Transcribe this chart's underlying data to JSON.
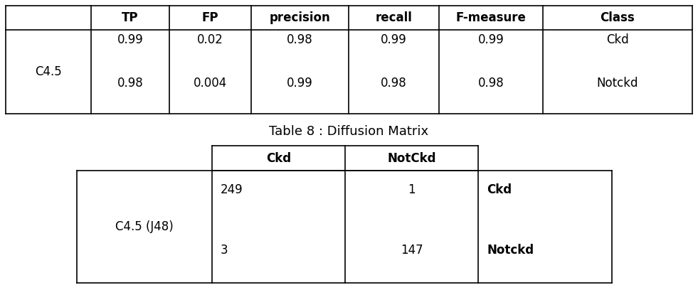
{
  "table1": {
    "headers": [
      "",
      "TP",
      "FP",
      "precision",
      "recall",
      "F-measure",
      "Class"
    ],
    "row_label": "C4.5",
    "row_data": [
      [
        "0.99",
        "0.02",
        "0.98",
        "0.99",
        "0.99",
        "Ckd"
      ],
      [
        "0.98",
        "0.004",
        "0.99",
        "0.98",
        "0.98",
        "Notckd"
      ]
    ]
  },
  "table2": {
    "caption": "Table 8 : Diffusion Matrix",
    "col_headers": [
      "Ckd",
      "NotCkd"
    ],
    "row_header": "C4.5 (J48)",
    "cells": [
      [
        "249",
        "1"
      ],
      [
        "3",
        "147"
      ]
    ],
    "row_labels": [
      "Ckd",
      "Notckd"
    ]
  },
  "bg_color": "#ffffff",
  "text_color": "#000000",
  "line_color": "#000000",
  "font_size": 12,
  "bold_font_size": 12
}
